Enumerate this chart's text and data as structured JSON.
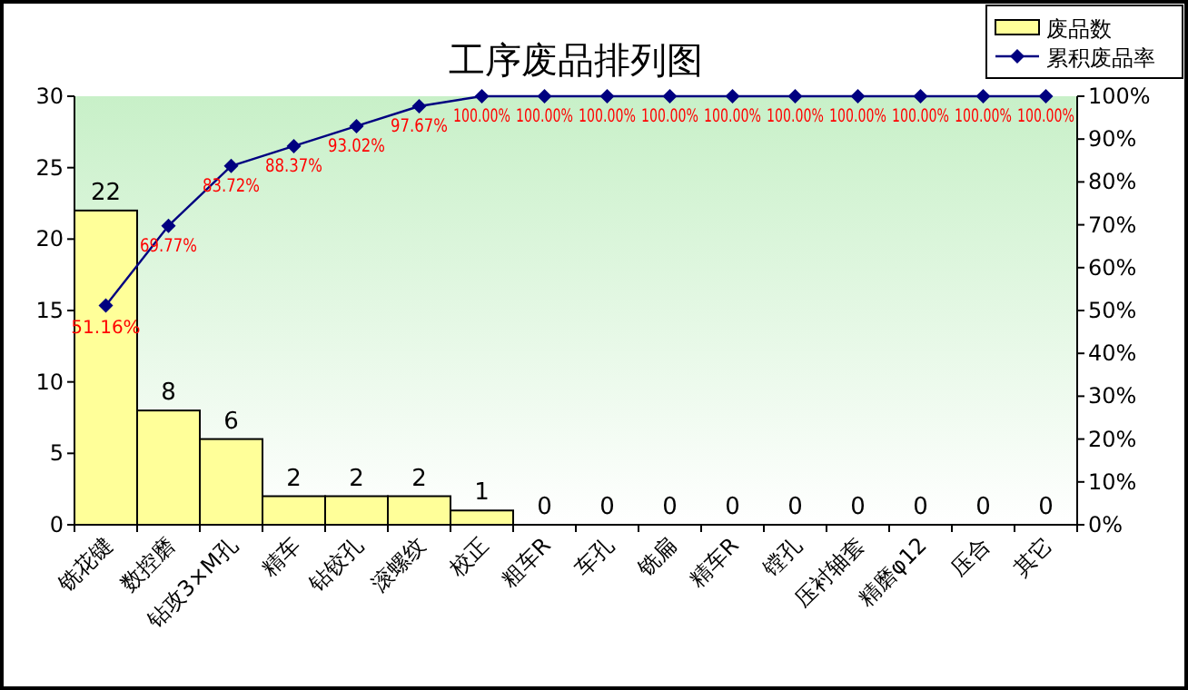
{
  "chart_data": {
    "type": "bar",
    "title": "工序废品排列图",
    "categories": [
      "铣花键",
      "数控磨",
      "钻攻3×M孔",
      "精车",
      "钻铰孔",
      "滚螺纹",
      "校正",
      "粗车R",
      "车孔",
      "铣扁",
      "精车R",
      "镗孔",
      "压衬轴套",
      "精磨φ12",
      "压合",
      "其它"
    ],
    "series": [
      {
        "name": "废品数",
        "color": "#ffff99",
        "values": [
          22,
          8,
          6,
          2,
          2,
          2,
          1,
          0,
          0,
          0,
          0,
          0,
          0,
          0,
          0,
          0
        ],
        "data_labels": true
      },
      {
        "name": "累积废品率",
        "type": "line",
        "axis": "y2",
        "color": "#000080",
        "marker": "diamond",
        "values": [
          51.16,
          69.77,
          83.72,
          88.37,
          93.02,
          97.67,
          100,
          100,
          100,
          100,
          100,
          100,
          100,
          100,
          100,
          100
        ],
        "value_labels": [
          "51.16%",
          "69.77%",
          "83.72%",
          "88.37%",
          "93.02%",
          "97.67%",
          "100.00%",
          "100.00%",
          "100.00%",
          "100.00%",
          "100.00%",
          "100.00%",
          "100.00%",
          "100.00%",
          "100.00%",
          "100.00%"
        ]
      }
    ],
    "ylim": [
      0,
      30
    ],
    "yticks": [
      0,
      5,
      10,
      15,
      20,
      25,
      30
    ],
    "y2lim": [
      0,
      100
    ],
    "y2ticks": [
      {
        "value": 0,
        "label": "0%"
      },
      {
        "value": 10,
        "label": "10%"
      },
      {
        "value": 20,
        "label": "20%"
      },
      {
        "value": 30,
        "label": "30%"
      },
      {
        "value": 40,
        "label": "40%"
      },
      {
        "value": 50,
        "label": "50%"
      },
      {
        "value": 60,
        "label": "60%"
      },
      {
        "value": 70,
        "label": "70%"
      },
      {
        "value": 80,
        "label": "80%"
      },
      {
        "value": 90,
        "label": "90%"
      },
      {
        "value": 100,
        "label": "100%"
      }
    ],
    "legend": "top right",
    "grid": false
  }
}
